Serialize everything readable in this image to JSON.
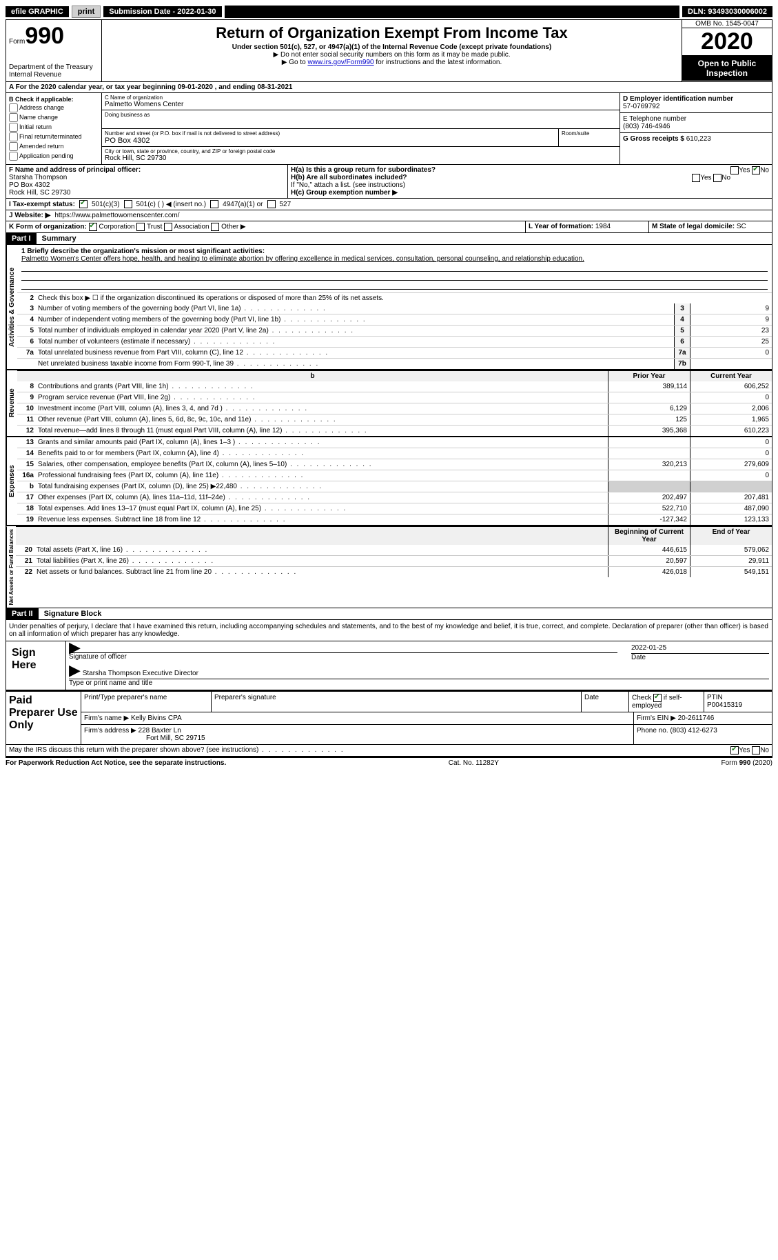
{
  "topbar": {
    "efile": "efile GRAPHIC",
    "print": "print",
    "submission": "Submission Date - 2022-01-30",
    "dln": "DLN: 93493030006002"
  },
  "header": {
    "form_label": "Form",
    "form_number": "990",
    "dept": "Department of the Treasury\nInternal Revenue",
    "title": "Return of Organization Exempt From Income Tax",
    "sub1": "Under section 501(c), 527, or 4947(a)(1) of the Internal Revenue Code (except private foundations)",
    "sub2": "▶ Do not enter social security numbers on this form as it may be made public.",
    "sub3_pre": "▶ Go to ",
    "sub3_link": "www.irs.gov/Form990",
    "sub3_post": " for instructions and the latest information.",
    "omb": "OMB No. 1545-0047",
    "year": "2020",
    "open": "Open to Public Inspection"
  },
  "row_a": "A For the 2020 calendar year, or tax year beginning 09-01-2020   , and ending 08-31-2021",
  "col_b": {
    "title": "B Check if applicable:",
    "items": [
      "Address change",
      "Name change",
      "Initial return",
      "Final return/terminated",
      "Amended return",
      "Application pending"
    ]
  },
  "col_c": {
    "c_label": "C Name of organization",
    "org_name": "Palmetto Womens Center",
    "dba_label": "Doing business as",
    "addr_label": "Number and street (or P.O. box if mail is not delivered to street address)",
    "room_label": "Room/suite",
    "addr": "PO Box 4302",
    "city_label": "City or town, state or province, country, and ZIP or foreign postal code",
    "city": "Rock Hill, SC  29730"
  },
  "col_d": {
    "d_label": "D Employer identification number",
    "ein": "57-0769792",
    "e_label": "E Telephone number",
    "phone": "(803) 746-4946",
    "g_label": "G Gross receipts $",
    "gross": "610,223"
  },
  "officer": {
    "f_label": "F Name and address of principal officer:",
    "name": "Starsha Thompson",
    "addr1": "PO Box 4302",
    "addr2": "Rock Hill, SC  29730",
    "ha_label": "H(a)  Is this a group return for subordinates?",
    "ha_yes": "Yes",
    "ha_no": "No",
    "hb_label": "H(b)  Are all subordinates included?",
    "hb_note": "If \"No,\" attach a list. (see instructions)",
    "hc_label": "H(c)  Group exemption number ▶"
  },
  "status": {
    "i_label": "I   Tax-exempt status:",
    "opt1": "501(c)(3)",
    "opt2": "501(c) (  ) ◀ (insert no.)",
    "opt3": "4947(a)(1) or",
    "opt4": "527"
  },
  "website": {
    "j_label": "J   Website: ▶",
    "url": "https://www.palmettowomenscenter.com/"
  },
  "k_row": {
    "k_label": "K Form of organization:",
    "corp": "Corporation",
    "trust": "Trust",
    "assoc": "Association",
    "other": "Other ▶",
    "l_label": "L Year of formation:",
    "l_val": "1984",
    "m_label": "M State of legal domicile:",
    "m_val": "SC"
  },
  "part1": {
    "label": "Part I",
    "title": "Summary",
    "briefly": "1  Briefly describe the organization's mission or most significant activities:",
    "mission": "Palmetto Women's Center offers hope, health, and healing to eliminate abortion by offering excellence in medical services, consultation, personal counseling, and relationship education.",
    "line2": "Check this box ▶ ☐  if the organization discontinued its operations or disposed of more than 25% of its net assets.",
    "vert": "Activities & Governance",
    "rows": [
      {
        "n": "3",
        "d": "Number of voting members of the governing body (Part VI, line 1a)",
        "box": "3",
        "v": "9"
      },
      {
        "n": "4",
        "d": "Number of independent voting members of the governing body (Part VI, line 1b)",
        "box": "4",
        "v": "9"
      },
      {
        "n": "5",
        "d": "Total number of individuals employed in calendar year 2020 (Part V, line 2a)",
        "box": "5",
        "v": "23"
      },
      {
        "n": "6",
        "d": "Total number of volunteers (estimate if necessary)",
        "box": "6",
        "v": "25"
      },
      {
        "n": "7a",
        "d": "Total unrelated business revenue from Part VIII, column (C), line 12",
        "box": "7a",
        "v": "0"
      },
      {
        "n": "",
        "d": "Net unrelated business taxable income from Form 990-T, line 39",
        "box": "7b",
        "v": ""
      }
    ]
  },
  "revenue": {
    "vert": "Revenue",
    "hdr_prior": "Prior Year",
    "hdr_curr": "Current Year",
    "rows": [
      {
        "n": "8",
        "d": "Contributions and grants (Part VIII, line 1h)",
        "p": "389,114",
        "c": "606,252"
      },
      {
        "n": "9",
        "d": "Program service revenue (Part VIII, line 2g)",
        "p": "",
        "c": "0"
      },
      {
        "n": "10",
        "d": "Investment income (Part VIII, column (A), lines 3, 4, and 7d )",
        "p": "6,129",
        "c": "2,006"
      },
      {
        "n": "11",
        "d": "Other revenue (Part VIII, column (A), lines 5, 6d, 8c, 9c, 10c, and 11e)",
        "p": "125",
        "c": "1,965"
      },
      {
        "n": "12",
        "d": "Total revenue—add lines 8 through 11 (must equal Part VIII, column (A), line 12)",
        "p": "395,368",
        "c": "610,223"
      }
    ]
  },
  "expenses": {
    "vert": "Expenses",
    "rows": [
      {
        "n": "13",
        "d": "Grants and similar amounts paid (Part IX, column (A), lines 1–3 )",
        "p": "",
        "c": "0"
      },
      {
        "n": "14",
        "d": "Benefits paid to or for members (Part IX, column (A), line 4)",
        "p": "",
        "c": "0"
      },
      {
        "n": "15",
        "d": "Salaries, other compensation, employee benefits (Part IX, column (A), lines 5–10)",
        "p": "320,213",
        "c": "279,609"
      },
      {
        "n": "16a",
        "d": "Professional fundraising fees (Part IX, column (A), line 11e)",
        "p": "",
        "c": "0"
      },
      {
        "n": "b",
        "d": "Total fundraising expenses (Part IX, column (D), line 25) ▶22,480",
        "p": "GREY",
        "c": "GREY"
      },
      {
        "n": "17",
        "d": "Other expenses (Part IX, column (A), lines 11a–11d, 11f–24e)",
        "p": "202,497",
        "c": "207,481"
      },
      {
        "n": "18",
        "d": "Total expenses. Add lines 13–17 (must equal Part IX, column (A), line 25)",
        "p": "522,710",
        "c": "487,090"
      },
      {
        "n": "19",
        "d": "Revenue less expenses. Subtract line 18 from line 12",
        "p": "-127,342",
        "c": "123,133"
      }
    ]
  },
  "netassets": {
    "vert": "Net Assets or Fund Balances",
    "hdr_beg": "Beginning of Current Year",
    "hdr_end": "End of Year",
    "rows": [
      {
        "n": "20",
        "d": "Total assets (Part X, line 16)",
        "p": "446,615",
        "c": "579,062"
      },
      {
        "n": "21",
        "d": "Total liabilities (Part X, line 26)",
        "p": "20,597",
        "c": "29,911"
      },
      {
        "n": "22",
        "d": "Net assets or fund balances. Subtract line 21 from line 20",
        "p": "426,018",
        "c": "549,151"
      }
    ]
  },
  "part2": {
    "label": "Part II",
    "title": "Signature Block",
    "decl": "Under penalties of perjury, I declare that I have examined this return, including accompanying schedules and statements, and to the best of my knowledge and belief, it is true, correct, and complete. Declaration of preparer (other than officer) is based on all information of which preparer has any knowledge."
  },
  "sign": {
    "label": "Sign Here",
    "sig_officer": "Signature of officer",
    "date_label": "Date",
    "date": "2022-01-25",
    "name": "Starsha Thompson Executive Director",
    "type_label": "Type or print name and title"
  },
  "preparer": {
    "label": "Paid Preparer Use Only",
    "h1": "Print/Type preparer's name",
    "h2": "Preparer's signature",
    "h3": "Date",
    "h4_a": "Check",
    "h4_b": "if self-employed",
    "h5": "PTIN",
    "ptin": "P00415319",
    "firm_label": "Firm's name   ▶",
    "firm": "Kelly Bivins CPA",
    "ein_label": "Firm's EIN ▶",
    "ein": "20-2611746",
    "addr_label": "Firm's address ▶",
    "addr1": "228 Baxter Ln",
    "addr2": "Fort Mill, SC  29715",
    "phone_label": "Phone no.",
    "phone": "(803) 412-6273"
  },
  "discuss": "May the IRS discuss this return with the preparer shown above? (see instructions)",
  "discuss_yes": "Yes",
  "discuss_no": "No",
  "footer": {
    "left": "For Paperwork Reduction Act Notice, see the separate instructions.",
    "mid": "Cat. No. 11282Y",
    "right": "Form 990 (2020)"
  }
}
